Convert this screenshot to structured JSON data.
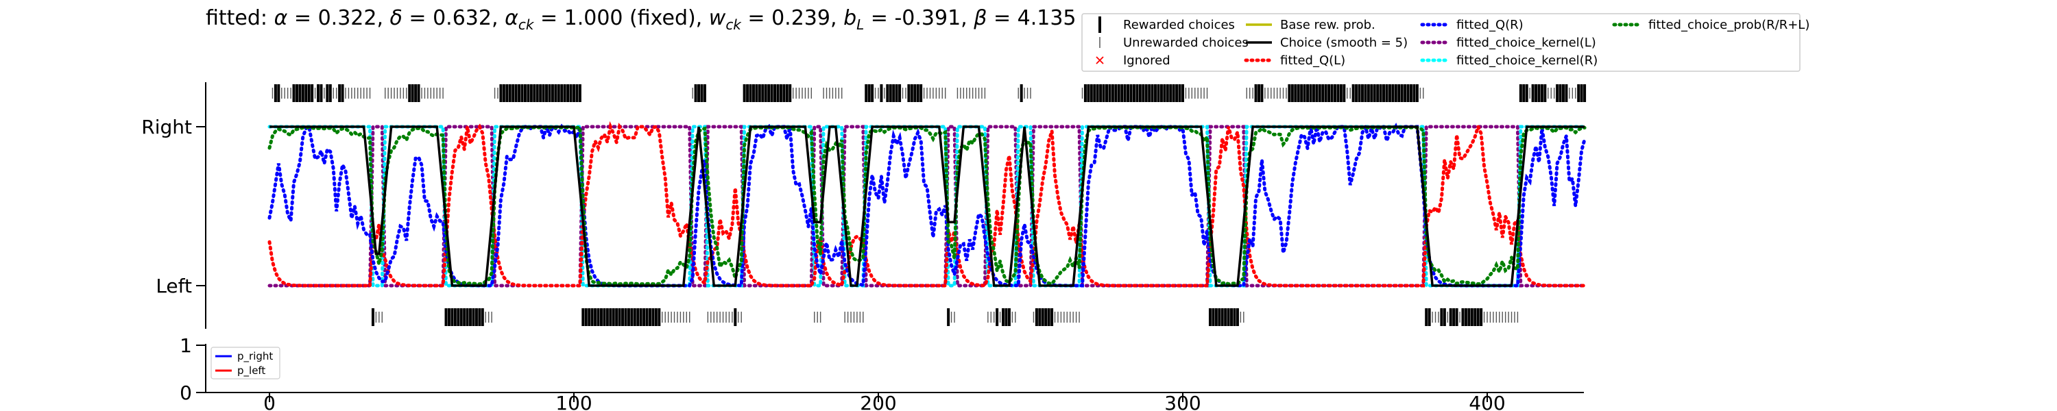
{
  "chart_data": [
    {
      "type": "line",
      "title": "fitted: α = 0.322, δ = 0.632, α_ck = 1.000 (fixed), w_ck = 0.239, b_L = -0.391, β = 4.135",
      "title_parts": {
        "p1": "fitted: ",
        "alpha": "α",
        "p2": " = 0.322, ",
        "delta": "δ",
        "p3": " = 0.632, ",
        "alpha_ck_base": "α",
        "alpha_ck_sub": "ck",
        "p4": " = 1.000 (fixed), ",
        "w_ck_base": "w",
        "w_ck_sub": "ck",
        "p5": " = 0.239, ",
        "b_l_base": "b",
        "b_l_sub": "L",
        "p6": " = -0.391, ",
        "beta": "β",
        "p7": " = 4.135"
      },
      "ytick_labels": [
        "Left",
        "Right"
      ],
      "xlim": [
        -20,
        435
      ],
      "legend_position": "top-right",
      "legend": [
        {
          "label": "Rewarded choices",
          "color": "#000000",
          "style": "bar"
        },
        {
          "label": "Unrewarded choices",
          "color": "#555555",
          "style": "tick"
        },
        {
          "label": "Ignored",
          "color": "#ff0000",
          "style": "cross"
        },
        {
          "label": "Base rew. prob.",
          "color": "#bcbd00",
          "style": "solid"
        },
        {
          "label": "Choice (smooth = 5)",
          "color": "#000000",
          "style": "solid"
        },
        {
          "label": "fitted_Q(L)",
          "color": "#ff0000",
          "style": "dotted"
        },
        {
          "label": "fitted_Q(R)",
          "color": "#0000ff",
          "style": "dotted"
        },
        {
          "label": "fitted_choice_kernel(L)",
          "color": "#800080",
          "style": "dotted"
        },
        {
          "label": "fitted_choice_kernel(R)",
          "color": "#00ffff",
          "style": "dotted"
        },
        {
          "label": "fitted_choice_prob(R/R+L)",
          "color": "#008000",
          "style": "dotted"
        }
      ],
      "choice_blocks": [
        {
          "start": 1,
          "end": 33,
          "side": "R"
        },
        {
          "start": 34,
          "end": 37,
          "side": "L"
        },
        {
          "start": 38,
          "end": 57,
          "side": "R"
        },
        {
          "start": 58,
          "end": 73,
          "side": "L"
        },
        {
          "start": 74,
          "end": 102,
          "side": "R"
        },
        {
          "start": 103,
          "end": 138,
          "side": "L"
        },
        {
          "start": 139,
          "end": 143,
          "side": "R"
        },
        {
          "start": 144,
          "end": 155,
          "side": "L"
        },
        {
          "start": 156,
          "end": 178,
          "side": "R"
        },
        {
          "start": 179,
          "end": 181,
          "side": "L"
        },
        {
          "start": 182,
          "end": 188,
          "side": "R"
        },
        {
          "start": 189,
          "end": 195,
          "side": "L"
        },
        {
          "start": 196,
          "end": 222,
          "side": "R"
        },
        {
          "start": 223,
          "end": 225,
          "side": "L"
        },
        {
          "start": 226,
          "end": 235,
          "side": "R"
        },
        {
          "start": 236,
          "end": 245,
          "side": "L"
        },
        {
          "start": 246,
          "end": 250,
          "side": "R"
        },
        {
          "start": 251,
          "end": 266,
          "side": "L"
        },
        {
          "start": 267,
          "end": 308,
          "side": "R"
        },
        {
          "start": 309,
          "end": 320,
          "side": "L"
        },
        {
          "start": 321,
          "end": 379,
          "side": "R"
        },
        {
          "start": 380,
          "end": 410,
          "side": "L"
        },
        {
          "start": 411,
          "end": 432,
          "side": "R"
        }
      ],
      "rewarded_right_ranges": [
        [
          2,
          3
        ],
        [
          8,
          9
        ],
        [
          10,
          14
        ],
        [
          16,
          17
        ],
        [
          19,
          20
        ],
        [
          23,
          24
        ],
        [
          46,
          49
        ],
        [
          76,
          102
        ],
        [
          140,
          145
        ],
        [
          148,
          149
        ],
        [
          151,
          153
        ],
        [
          156,
          171
        ],
        [
          196,
          198
        ],
        [
          201,
          201
        ],
        [
          203,
          207
        ],
        [
          210,
          214
        ],
        [
          224,
          225
        ],
        [
          247,
          247
        ],
        [
          268,
          300
        ],
        [
          324,
          326
        ],
        [
          335,
          353
        ],
        [
          356,
          377
        ],
        [
          410,
          413
        ],
        [
          415,
          419
        ],
        [
          423,
          426
        ],
        [
          430,
          432
        ]
      ],
      "rewarded_left_ranges": [
        [
          33,
          34
        ],
        [
          57,
          70
        ],
        [
          103,
          128
        ],
        [
          153,
          153
        ],
        [
          222,
          223
        ],
        [
          239,
          239
        ],
        [
          241,
          243
        ],
        [
          252,
          257
        ],
        [
          307,
          318
        ],
        [
          380,
          381
        ],
        [
          385,
          386
        ],
        [
          388,
          390
        ],
        [
          392,
          398
        ],
        [
          432,
          433
        ]
      ],
      "prob_chart": {
        "ylim": [
          0,
          1
        ],
        "ytick_labels": [
          "0",
          "1"
        ],
        "xticks": [
          0,
          100,
          200,
          300,
          400
        ],
        "xtick_labels": [
          "0",
          "100",
          "200",
          "300",
          "400"
        ],
        "legend_position": "upper-left",
        "legend": [
          {
            "label": "p_right",
            "color": "#0000ff"
          },
          {
            "label": "p_left",
            "color": "#ff0000"
          }
        ]
      }
    }
  ]
}
